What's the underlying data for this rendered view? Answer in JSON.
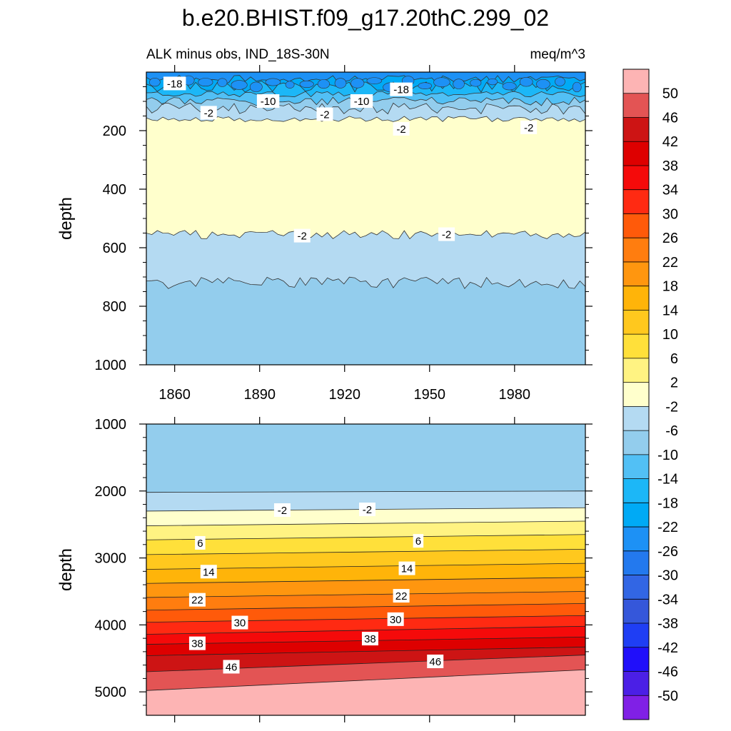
{
  "figure": {
    "title": "b.e20.BHIST.f09_g17.20thC.299_02"
  },
  "chart_data": [
    {
      "type": "heatmap",
      "panel": "upper",
      "subtitle_left": "ALK minus obs, IND_18S-30N",
      "subtitle_right": "meq/m^3",
      "ylabel": "depth",
      "xlabel": "",
      "xlim": [
        1850,
        2005
      ],
      "ylim": [
        1000,
        0
      ],
      "x_ticks": [
        1860,
        1890,
        1920,
        1950,
        1980
      ],
      "x_tick_labels": [
        "1860",
        "1890",
        "1920",
        "1950",
        "1980"
      ],
      "y_ticks": [
        200,
        400,
        600,
        800,
        1000
      ],
      "y_tick_labels": [
        "200",
        "400",
        "600",
        "800",
        "1000"
      ],
      "bands": [
        {
          "top": 0,
          "bottom": 25,
          "value": -26
        },
        {
          "top": 25,
          "bottom": 50,
          "value": -22
        },
        {
          "top": 50,
          "bottom": 75,
          "value": -18
        },
        {
          "top": 75,
          "bottom": 100,
          "value": -14
        },
        {
          "top": 100,
          "bottom": 125,
          "value": -10
        },
        {
          "top": 125,
          "bottom": 160,
          "value": -6
        },
        {
          "top": 160,
          "bottom": 555,
          "value": 0
        },
        {
          "top": 555,
          "bottom": 720,
          "value": -4
        },
        {
          "top": 720,
          "bottom": 1000,
          "value": -8
        }
      ],
      "contour_labels": [
        {
          "text": "-18",
          "x": 1860,
          "y": 40
        },
        {
          "text": "-18",
          "x": 1940,
          "y": 60
        },
        {
          "text": "-10",
          "x": 1893,
          "y": 100
        },
        {
          "text": "-10",
          "x": 1926,
          "y": 100
        },
        {
          "text": "-2",
          "x": 1872,
          "y": 140
        },
        {
          "text": "-2",
          "x": 1913,
          "y": 145
        },
        {
          "text": "-2",
          "x": 1940,
          "y": 195
        },
        {
          "text": "-2",
          "x": 1985,
          "y": 190
        },
        {
          "text": "-2",
          "x": 1905,
          "y": 560
        },
        {
          "text": "-2",
          "x": 1956,
          "y": 555
        }
      ]
    },
    {
      "type": "heatmap",
      "panel": "lower",
      "ylabel": "depth",
      "xlabel": "",
      "xlim": [
        1850,
        2005
      ],
      "ylim": [
        5350,
        1000
      ],
      "x_ticks": [
        1860,
        1890,
        1920,
        1950,
        1980
      ],
      "y_ticks": [
        1000,
        2000,
        3000,
        4000,
        5000
      ],
      "y_tick_labels": [
        "1000",
        "2000",
        "3000",
        "4000",
        "5000"
      ],
      "bands": [
        {
          "top_left": 1000,
          "top_right": 1000,
          "bottom_left": 2020,
          "bottom_right": 2000,
          "value": -8
        },
        {
          "top_left": 2020,
          "top_right": 2000,
          "bottom_left": 2300,
          "bottom_right": 2250,
          "value": -4
        },
        {
          "top_left": 2300,
          "top_right": 2250,
          "bottom_left": 2520,
          "bottom_right": 2450,
          "value": 0
        },
        {
          "top_left": 2520,
          "top_right": 2450,
          "bottom_left": 2730,
          "bottom_right": 2650,
          "value": 4
        },
        {
          "top_left": 2730,
          "top_right": 2650,
          "bottom_left": 2950,
          "bottom_right": 2870,
          "value": 8
        },
        {
          "top_left": 2950,
          "top_right": 2870,
          "bottom_left": 3170,
          "bottom_right": 3080,
          "value": 12
        },
        {
          "top_left": 3170,
          "top_right": 3080,
          "bottom_left": 3380,
          "bottom_right": 3290,
          "value": 16
        },
        {
          "top_left": 3380,
          "top_right": 3290,
          "bottom_left": 3590,
          "bottom_right": 3500,
          "value": 20
        },
        {
          "top_left": 3590,
          "top_right": 3500,
          "bottom_left": 3780,
          "bottom_right": 3680,
          "value": 24
        },
        {
          "top_left": 3780,
          "top_right": 3680,
          "bottom_left": 3960,
          "bottom_right": 3860,
          "value": 28
        },
        {
          "top_left": 3960,
          "top_right": 3860,
          "bottom_left": 4140,
          "bottom_right": 4020,
          "value": 32
        },
        {
          "top_left": 4140,
          "top_right": 4020,
          "bottom_left": 4290,
          "bottom_right": 4180,
          "value": 36
        },
        {
          "top_left": 4290,
          "top_right": 4180,
          "bottom_left": 4460,
          "bottom_right": 4330,
          "value": 40
        },
        {
          "top_left": 4460,
          "top_right": 4330,
          "bottom_left": 4700,
          "bottom_right": 4450,
          "value": 44
        },
        {
          "top_left": 4700,
          "top_right": 4450,
          "bottom_left": 4980,
          "bottom_right": 4670,
          "value": 48
        },
        {
          "top_left": 4980,
          "top_right": 4670,
          "bottom_left": 5350,
          "bottom_right": 5350,
          "value": 52
        }
      ],
      "contour_labels": [
        {
          "text": "-2",
          "x": 1898,
          "y": 2290
        },
        {
          "text": "-2",
          "x": 1928,
          "y": 2280
        },
        {
          "text": "6",
          "x": 1869,
          "y": 2780
        },
        {
          "text": "6",
          "x": 1946,
          "y": 2750
        },
        {
          "text": "14",
          "x": 1872,
          "y": 3210
        },
        {
          "text": "14",
          "x": 1942,
          "y": 3160
        },
        {
          "text": "22",
          "x": 1868,
          "y": 3630
        },
        {
          "text": "22",
          "x": 1940,
          "y": 3570
        },
        {
          "text": "30",
          "x": 1883,
          "y": 3970
        },
        {
          "text": "30",
          "x": 1938,
          "y": 3920
        },
        {
          "text": "38",
          "x": 1868,
          "y": 4280
        },
        {
          "text": "38",
          "x": 1929,
          "y": 4210
        },
        {
          "text": "46",
          "x": 1880,
          "y": 4630
        },
        {
          "text": "46",
          "x": 1952,
          "y": 4550
        }
      ]
    }
  ],
  "colorbar": {
    "levels": [
      "50",
      "46",
      "42",
      "38",
      "34",
      "30",
      "26",
      "22",
      "18",
      "14",
      "10",
      "6",
      "2",
      "-2",
      "-6",
      "-10",
      "-14",
      "-18",
      "-22",
      "-26",
      "-30",
      "-34",
      "-38",
      "-42",
      "-46",
      "-50"
    ],
    "colors": [
      "#fdb4b4",
      "#e35454",
      "#cd1414",
      "#de0000",
      "#f50a0a",
      "#ff2a12",
      "#ff5a0a",
      "#ff7d0f",
      "#ff960f",
      "#ffb409",
      "#ffc81e",
      "#ffe03a",
      "#fff382",
      "#ffffcc",
      "#b4daf2",
      "#93cded",
      "#52c0f5",
      "#1cb7f7",
      "#00aaf5",
      "#1d91f5",
      "#2379ee",
      "#3266e4",
      "#3557da",
      "#1f3ef4",
      "#200ffa",
      "#4b1fe6",
      "#8020e6"
    ]
  }
}
